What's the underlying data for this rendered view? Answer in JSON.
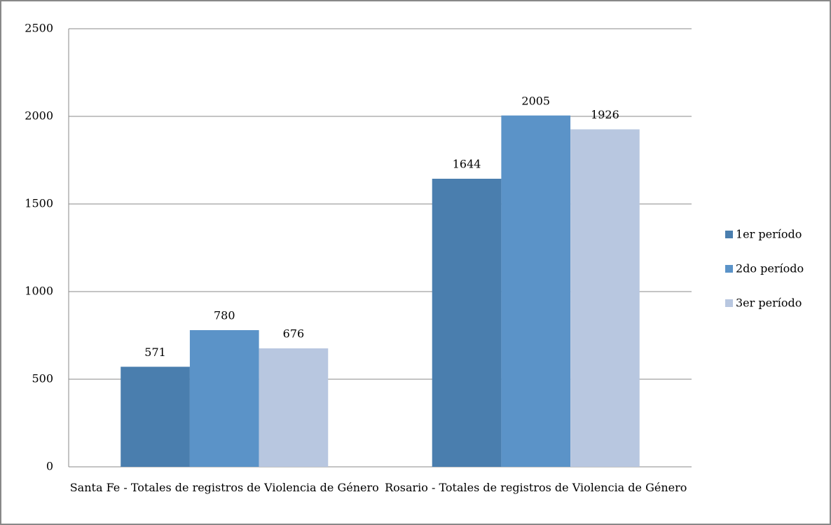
{
  "chart_data": {
    "type": "bar",
    "categories": [
      "Santa Fe - Totales de registros de Violencia de Género",
      "Rosario - Totales de registros de Violencia de Género"
    ],
    "series": [
      {
        "name": "1er período",
        "color": "#4a7eae",
        "values": [
          571,
          1644
        ]
      },
      {
        "name": "2do período",
        "color": "#5b93c8",
        "values": [
          780,
          2005
        ]
      },
      {
        "name": "3er período",
        "color": "#b8c7e0",
        "values": [
          676,
          1926
        ]
      }
    ],
    "ylim": [
      0,
      2500
    ],
    "yticks": [
      0,
      500,
      1000,
      1500,
      2000,
      2500
    ],
    "grid": true,
    "legend": "right"
  }
}
